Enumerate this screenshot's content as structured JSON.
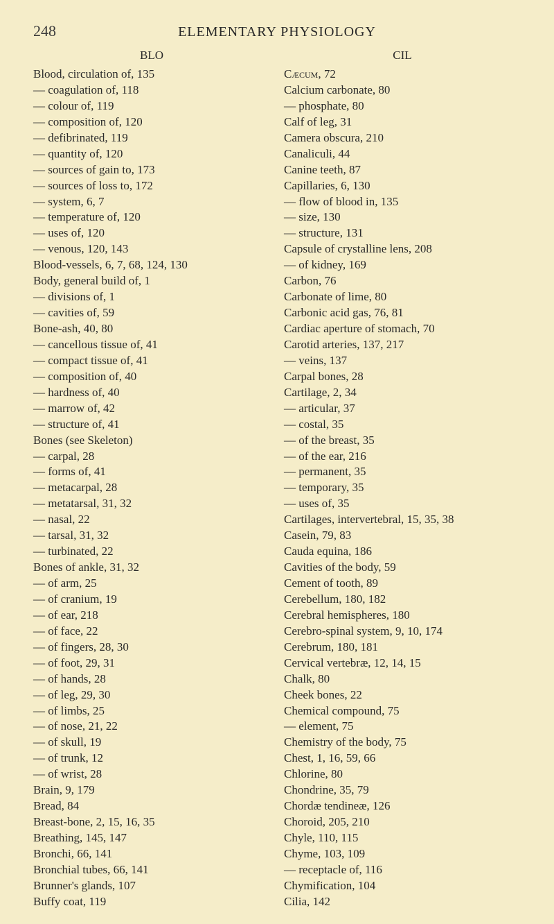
{
  "pageNumber": "248",
  "pageTitle": "ELEMENTARY PHYSIOLOGY",
  "leftHead": "BLO",
  "rightHead": "CIL",
  "leftEntries": [
    "Blood, circulation of, 135",
    "— coagulation of, 118",
    "— colour of, 119",
    "— composition of, 120",
    "— defibrinated, 119",
    "— quantity of, 120",
    "— sources of gain to, 173",
    "— sources of loss to, 172",
    "— system, 6, 7",
    "— temperature of, 120",
    "— uses of, 120",
    "— venous, 120, 143",
    "Blood-vessels, 6, 7, 68, 124, 130",
    "Body, general build of, 1",
    "— divisions of, 1",
    "— cavities of, 59",
    "Bone-ash, 40, 80",
    "— cancellous tissue of, 41",
    "— compact tissue of, 41",
    "— composition of, 40",
    "— hardness of, 40",
    "— marrow of, 42",
    "— structure of, 41",
    "Bones (see Skeleton)",
    "— carpal, 28",
    "— forms of, 41",
    "— metacarpal, 28",
    "— metatarsal, 31, 32",
    "— nasal, 22",
    "— tarsal, 31, 32",
    "— turbinated, 22",
    "Bones of ankle, 31, 32",
    "— of arm, 25",
    "— of cranium, 19",
    "— of ear, 218",
    "— of face, 22",
    "— of fingers, 28, 30",
    "— of foot, 29, 31",
    "— of hands, 28",
    "— of leg, 29, 30",
    "— of limbs, 25",
    "— of nose, 21, 22",
    "— of skull, 19",
    "— of trunk, 12",
    "— of wrist, 28",
    "Brain, 9, 179",
    "Bread, 84",
    "Breast-bone, 2, 15, 16, 35",
    "Breathing, 145, 147",
    "Bronchi, 66, 141",
    "Bronchial tubes, 66, 141",
    "Brunner's glands, 107",
    "Buffy coat, 119"
  ],
  "rightEntries": [
    {
      "text": "Cæcum, 72",
      "smallcaps": true
    },
    {
      "text": "Calcium carbonate, 80"
    },
    {
      "text": "— phosphate, 80"
    },
    {
      "text": "Calf of leg, 31"
    },
    {
      "text": "Camera obscura, 210"
    },
    {
      "text": "Canaliculi, 44"
    },
    {
      "text": "Canine teeth, 87"
    },
    {
      "text": "Capillaries, 6, 130"
    },
    {
      "text": "— flow of blood in, 135"
    },
    {
      "text": "— size, 130"
    },
    {
      "text": "— structure, 131"
    },
    {
      "text": "Capsule of crystalline lens, 208"
    },
    {
      "text": "— of kidney, 169"
    },
    {
      "text": "Carbon, 76"
    },
    {
      "text": "Carbonate of lime, 80"
    },
    {
      "text": "Carbonic acid gas, 76, 81"
    },
    {
      "text": "Cardiac aperture of stomach, 70"
    },
    {
      "text": "Carotid arteries, 137, 217"
    },
    {
      "text": "— veins, 137"
    },
    {
      "text": "Carpal bones, 28"
    },
    {
      "text": "Cartilage, 2, 34"
    },
    {
      "text": "— articular, 37"
    },
    {
      "text": "— costal, 35"
    },
    {
      "text": "— of the breast, 35"
    },
    {
      "text": "— of the ear, 216"
    },
    {
      "text": "— permanent, 35"
    },
    {
      "text": "— temporary, 35"
    },
    {
      "text": "— uses of, 35"
    },
    {
      "text": "Cartilages, intervertebral, 15, 35, 38"
    },
    {
      "text": "Casein, 79, 83"
    },
    {
      "text": "Cauda equina, 186"
    },
    {
      "text": "Cavities of the body, 59"
    },
    {
      "text": "Cement of tooth, 89"
    },
    {
      "text": "Cerebellum, 180, 182"
    },
    {
      "text": "Cerebral hemispheres, 180"
    },
    {
      "text": "Cerebro-spinal system, 9, 10, 174"
    },
    {
      "text": "Cerebrum, 180, 181"
    },
    {
      "text": "Cervical vertebræ, 12, 14, 15"
    },
    {
      "text": "Chalk, 80"
    },
    {
      "text": "Cheek bones, 22"
    },
    {
      "text": "Chemical compound, 75"
    },
    {
      "text": "— element, 75"
    },
    {
      "text": "Chemistry of the body, 75"
    },
    {
      "text": "Chest, 1, 16, 59, 66"
    },
    {
      "text": "Chlorine, 80"
    },
    {
      "text": "Chondrine, 35, 79"
    },
    {
      "text": "Chordæ tendineæ, 126"
    },
    {
      "text": "Choroid, 205, 210"
    },
    {
      "text": "Chyle, 110, 115"
    },
    {
      "text": "Chyme, 103, 109"
    },
    {
      "text": "— receptacle of, 116"
    },
    {
      "text": "Chymification, 104"
    },
    {
      "text": "Cilia, 142"
    }
  ]
}
